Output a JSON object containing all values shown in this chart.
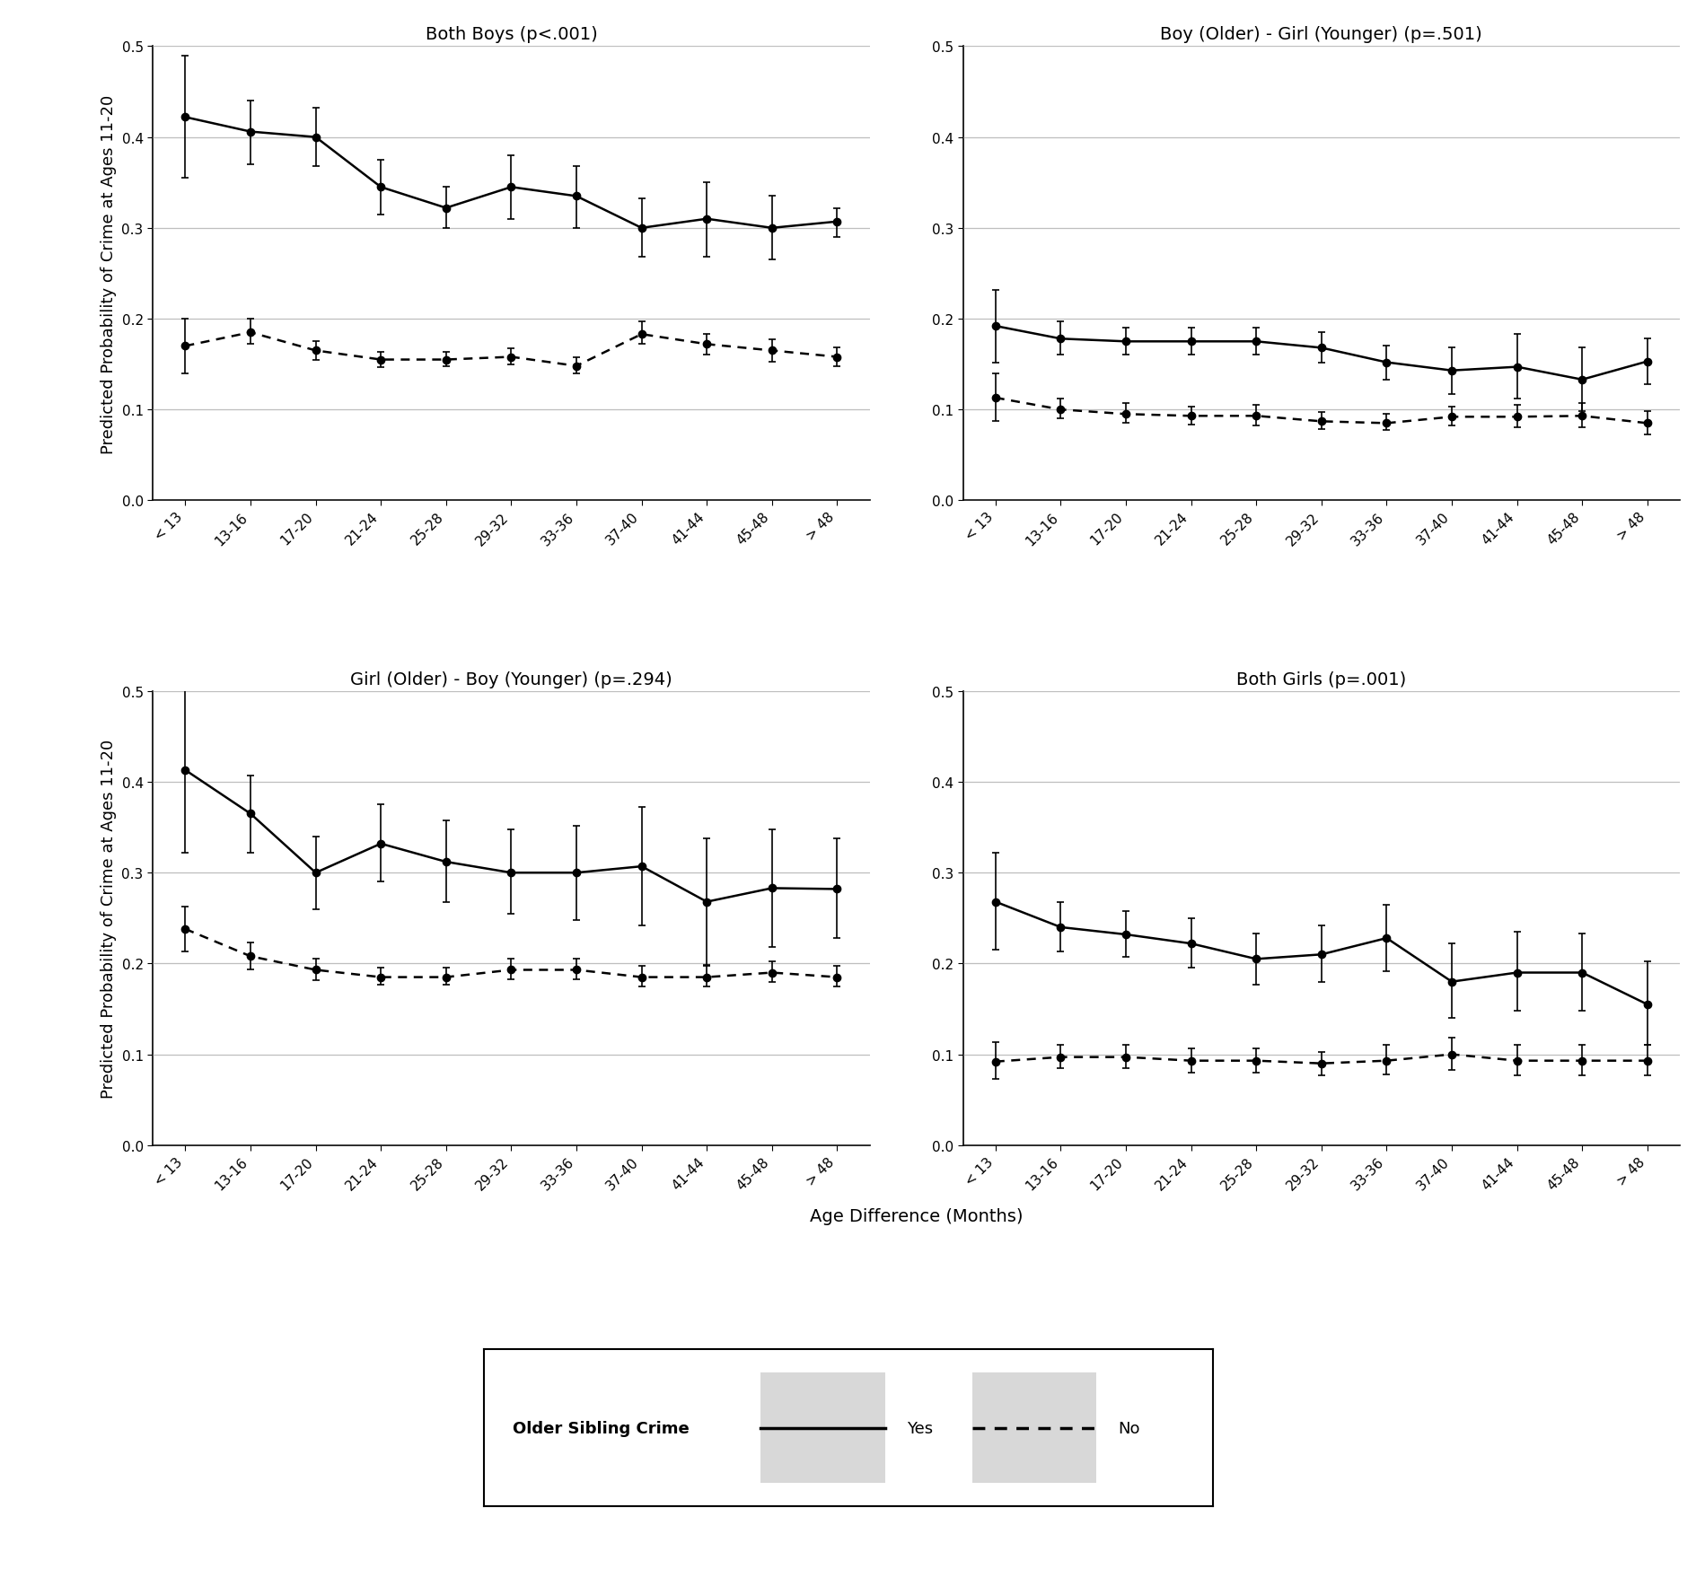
{
  "x_labels": [
    "< 13",
    "13-16",
    "17-20",
    "21-24",
    "25-28",
    "29-32",
    "33-36",
    "37-40",
    "41-44",
    "45-48",
    "> 48"
  ],
  "x_positions": [
    0,
    1,
    2,
    3,
    4,
    5,
    6,
    7,
    8,
    9,
    10
  ],
  "panel_titles": [
    "Both Boys (p<.001)",
    "Boy (Older) - Girl (Younger) (p=.501)",
    "Girl (Older) - Boy (Younger) (p=.294)",
    "Both Girls (p=.001)"
  ],
  "panels": {
    "both_boys": {
      "yes_y": [
        0.422,
        0.406,
        0.4,
        0.345,
        0.322,
        0.345,
        0.335,
        0.3,
        0.31,
        0.3,
        0.307
      ],
      "yes_lo": [
        0.355,
        0.37,
        0.368,
        0.315,
        0.3,
        0.31,
        0.3,
        0.268,
        0.268,
        0.265,
        0.29
      ],
      "yes_hi": [
        0.49,
        0.44,
        0.432,
        0.375,
        0.345,
        0.38,
        0.368,
        0.332,
        0.35,
        0.335,
        0.322
      ],
      "no_y": [
        0.17,
        0.185,
        0.165,
        0.155,
        0.155,
        0.158,
        0.148,
        0.183,
        0.172,
        0.165,
        0.158
      ],
      "no_lo": [
        0.14,
        0.172,
        0.155,
        0.147,
        0.148,
        0.15,
        0.14,
        0.172,
        0.16,
        0.153,
        0.148
      ],
      "no_hi": [
        0.2,
        0.2,
        0.175,
        0.163,
        0.163,
        0.167,
        0.158,
        0.197,
        0.183,
        0.177,
        0.168
      ]
    },
    "boy_older_girl_younger": {
      "yes_y": [
        0.192,
        0.178,
        0.175,
        0.175,
        0.175,
        0.168,
        0.152,
        0.143,
        0.147,
        0.133,
        0.153
      ],
      "yes_lo": [
        0.152,
        0.16,
        0.16,
        0.16,
        0.16,
        0.152,
        0.133,
        0.117,
        0.112,
        0.098,
        0.128
      ],
      "yes_hi": [
        0.232,
        0.197,
        0.19,
        0.19,
        0.19,
        0.185,
        0.17,
        0.168,
        0.183,
        0.168,
        0.178
      ],
      "no_y": [
        0.113,
        0.1,
        0.095,
        0.093,
        0.093,
        0.087,
        0.085,
        0.092,
        0.092,
        0.093,
        0.085
      ],
      "no_lo": [
        0.087,
        0.09,
        0.085,
        0.083,
        0.082,
        0.078,
        0.077,
        0.082,
        0.08,
        0.08,
        0.073
      ],
      "no_hi": [
        0.14,
        0.112,
        0.107,
        0.103,
        0.105,
        0.097,
        0.095,
        0.103,
        0.105,
        0.107,
        0.098
      ]
    },
    "girl_older_boy_younger": {
      "yes_y": [
        0.413,
        0.365,
        0.3,
        0.332,
        0.312,
        0.3,
        0.3,
        0.307,
        0.268,
        0.283,
        0.282
      ],
      "yes_lo": [
        0.322,
        0.322,
        0.26,
        0.29,
        0.268,
        0.255,
        0.248,
        0.242,
        0.198,
        0.218,
        0.228
      ],
      "yes_hi": [
        0.503,
        0.407,
        0.34,
        0.375,
        0.358,
        0.348,
        0.352,
        0.372,
        0.338,
        0.348,
        0.338
      ],
      "no_y": [
        0.238,
        0.208,
        0.193,
        0.185,
        0.185,
        0.193,
        0.193,
        0.185,
        0.185,
        0.19,
        0.185
      ],
      "no_lo": [
        0.213,
        0.193,
        0.182,
        0.177,
        0.177,
        0.183,
        0.183,
        0.175,
        0.175,
        0.18,
        0.175
      ],
      "no_hi": [
        0.263,
        0.223,
        0.205,
        0.195,
        0.195,
        0.205,
        0.205,
        0.197,
        0.197,
        0.202,
        0.197
      ]
    },
    "both_girls": {
      "yes_y": [
        0.268,
        0.24,
        0.232,
        0.222,
        0.205,
        0.21,
        0.228,
        0.18,
        0.19,
        0.19,
        0.155
      ],
      "yes_lo": [
        0.215,
        0.213,
        0.207,
        0.195,
        0.177,
        0.18,
        0.192,
        0.14,
        0.148,
        0.148,
        0.11
      ],
      "yes_hi": [
        0.322,
        0.268,
        0.258,
        0.25,
        0.233,
        0.242,
        0.265,
        0.222,
        0.235,
        0.233,
        0.202
      ],
      "no_y": [
        0.092,
        0.097,
        0.097,
        0.093,
        0.093,
        0.09,
        0.093,
        0.1,
        0.093,
        0.093,
        0.093
      ],
      "no_lo": [
        0.073,
        0.085,
        0.085,
        0.08,
        0.08,
        0.077,
        0.078,
        0.083,
        0.077,
        0.077,
        0.077
      ],
      "no_hi": [
        0.113,
        0.11,
        0.11,
        0.107,
        0.107,
        0.103,
        0.11,
        0.118,
        0.11,
        0.11,
        0.11
      ]
    }
  },
  "ylabel": "Predicted Probability of Crime at Ages 11-20",
  "xlabel": "Age Difference (Months)",
  "ylim": [
    0.0,
    0.5
  ],
  "yticks": [
    0.0,
    0.1,
    0.2,
    0.3,
    0.4,
    0.5
  ],
  "background_color": "#ffffff",
  "grid_color": "#bebebe",
  "legend_label_yes": "Yes",
  "legend_label_no": "No",
  "legend_title": "Older Sibling Crime",
  "title_fontsize": 14,
  "label_fontsize": 13,
  "tick_fontsize": 11,
  "legend_fontsize": 13
}
